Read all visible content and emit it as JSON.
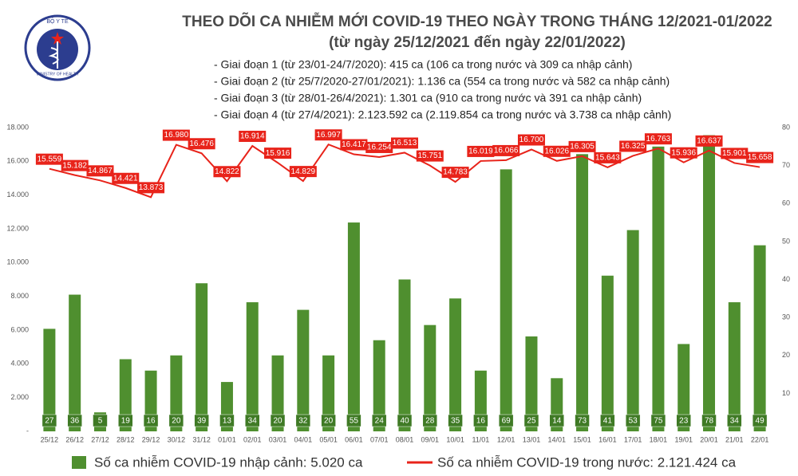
{
  "logo": {
    "top": "BỘ Y TẾ",
    "bottom": "MINISTRY OF HEALTH"
  },
  "chart_data": {
    "type": "combo",
    "title": "THEO DÕI CA NHIỄM MỚI COVID-19 THEO NGÀY TRONG THÁNG 12/2021-01/2022",
    "subtitle": "(từ ngày 25/12/2021 đến ngày 22/01/2022)",
    "annotations": [
      "- Giai đoạn 1 (từ 23/01-24/7/2020): 415 ca (106 ca trong nước và 309 ca nhập cảnh)",
      "- Giai đoạn 2 (từ 25/7/2020-27/01/2021): 1.136 ca (554 ca trong nước và 582 ca nhập cảnh)",
      "- Giai đoạn 3 (từ 28/01-26/4/2021): 1.301 ca (910 ca trong nước và 391 ca nhập cảnh)",
      "- Giai đoạn 4 (từ 27/4/2021): 2.123.592 ca (2.119.854 ca trong nước và 3.738 ca nhập cảnh)"
    ],
    "categories": [
      "25/12",
      "26/12",
      "27/12",
      "28/12",
      "29/12",
      "30/12",
      "31/12",
      "01/01",
      "02/01",
      "03/01",
      "04/01",
      "05/01",
      "06/01",
      "07/01",
      "08/01",
      "09/01",
      "10/01",
      "11/01",
      "12/01",
      "13/01",
      "14/01",
      "15/01",
      "16/01",
      "17/01",
      "18/01",
      "19/01",
      "20/01",
      "21/01",
      "22/01"
    ],
    "ylim": [
      0,
      18000
    ],
    "yticks": [
      {
        "value": 0,
        "label": "-"
      },
      {
        "value": 2000,
        "label": "2.000"
      },
      {
        "value": 4000,
        "label": "4.000"
      },
      {
        "value": 6000,
        "label": "6.000"
      },
      {
        "value": 8000,
        "label": "8.000"
      },
      {
        "value": 10000,
        "label": "10.000"
      },
      {
        "value": 12000,
        "label": "12.000"
      },
      {
        "value": 14000,
        "label": "14.000"
      },
      {
        "value": 16000,
        "label": "16.000"
      },
      {
        "value": 18000,
        "label": "18.000"
      }
    ],
    "y2lim": [
      0,
      80
    ],
    "y2ticks": [
      10,
      20,
      30,
      40,
      50,
      60,
      70,
      80
    ],
    "legend": "bottom",
    "series": [
      {
        "name": "Số ca nhiễm COVID-19 nhập cảnh: 5.020 ca",
        "type": "bar",
        "axis": "y2",
        "color": "#4f8f2f",
        "values": [
          27,
          36,
          5,
          19,
          16,
          20,
          39,
          13,
          34,
          20,
          32,
          20,
          55,
          24,
          40,
          28,
          35,
          16,
          69,
          25,
          14,
          73,
          41,
          53,
          75,
          23,
          78,
          34,
          49
        ]
      },
      {
        "name": "Số ca nhiễm COVID-19 trong nước: 2.121.424 ca",
        "type": "line",
        "color": "#e8231a",
        "values": [
          15559,
          15182,
          14867,
          14421,
          13873,
          16980,
          16476,
          14822,
          16914,
          15916,
          14829,
          16997,
          16417,
          16254,
          16513,
          15751,
          14783,
          16019,
          16066,
          16700,
          16026,
          16305,
          15643,
          16325,
          16763,
          15936,
          16637,
          15901,
          15658
        ],
        "value_labels": [
          "15.559",
          "15.182",
          "14.867",
          "14.421",
          "13.873",
          "16.980",
          "16.476",
          "14.822",
          "16.914",
          "15.916",
          "14.829",
          "16.997",
          "16.417",
          "16.254",
          "16.513",
          "15.751",
          "14.783",
          "16.019",
          "16.066",
          "16.700",
          "16.026",
          "16.305",
          "15.643",
          "16.325",
          "16.763",
          "15.936",
          "16.637",
          "15.901",
          "15.658"
        ]
      }
    ]
  }
}
